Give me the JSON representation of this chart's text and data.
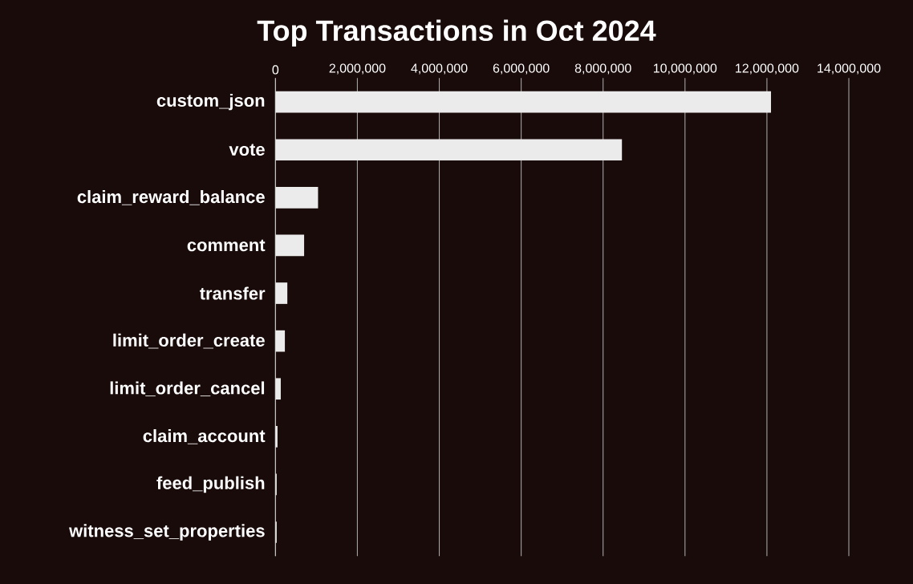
{
  "chart_data": {
    "type": "bar",
    "orientation": "horizontal",
    "title": "Top Transactions in Oct 2024",
    "categories": [
      "custom_json",
      "vote",
      "claim_reward_balance",
      "comment",
      "transfer",
      "limit_order_create",
      "limit_order_cancel",
      "claim_account",
      "feed_publish",
      "witness_set_properties"
    ],
    "values": [
      12100000,
      8460000,
      1040000,
      700000,
      290000,
      230000,
      130000,
      50000,
      30000,
      30000
    ],
    "color": "#ebebeb",
    "xlim": [
      0,
      14000000
    ],
    "xticks": [
      {
        "value": 0,
        "label": "0"
      },
      {
        "value": 2000000,
        "label": "2,000,000"
      },
      {
        "value": 4000000,
        "label": "4,000,000"
      },
      {
        "value": 6000000,
        "label": "6,000,000"
      },
      {
        "value": 8000000,
        "label": "8,000,000"
      },
      {
        "value": 10000000,
        "label": "10,000,000"
      },
      {
        "value": 12000000,
        "label": "12,000,000"
      },
      {
        "value": 14000000,
        "label": "14,000,000"
      }
    ],
    "grid": "x"
  }
}
